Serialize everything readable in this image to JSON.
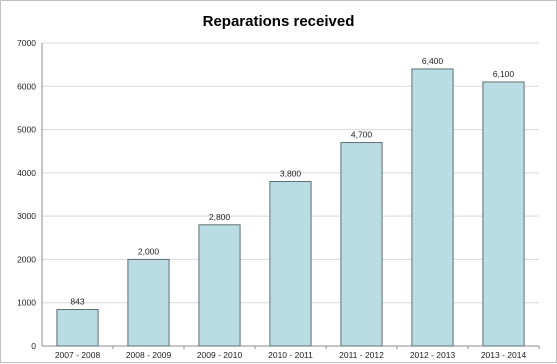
{
  "chart_data": {
    "type": "bar",
    "title": "Reparations received",
    "categories": [
      "2007 - 2008",
      "2008 - 2009",
      "2009 - 2010",
      "2010 - 2011",
      "2011 - 2012",
      "2012 - 2013",
      "2013 - 2014"
    ],
    "values": [
      843,
      2000,
      2800,
      3800,
      4700,
      6400,
      6100
    ],
    "value_labels": [
      "843",
      "2,000",
      "2,800",
      "3,800",
      "4,700",
      "6,400",
      "6,100"
    ],
    "xlabel": "",
    "ylabel": "",
    "ylim": [
      0,
      7000
    ],
    "yticks": [
      0,
      1000,
      2000,
      3000,
      4000,
      5000,
      6000,
      7000
    ],
    "ytick_labels": [
      "0",
      "1000",
      "2000",
      "3000",
      "4000",
      "5000",
      "6000",
      "7000"
    ],
    "grid": true,
    "bar_color": "#b9dde2",
    "bar_edge_color": "#5f6f73"
  }
}
